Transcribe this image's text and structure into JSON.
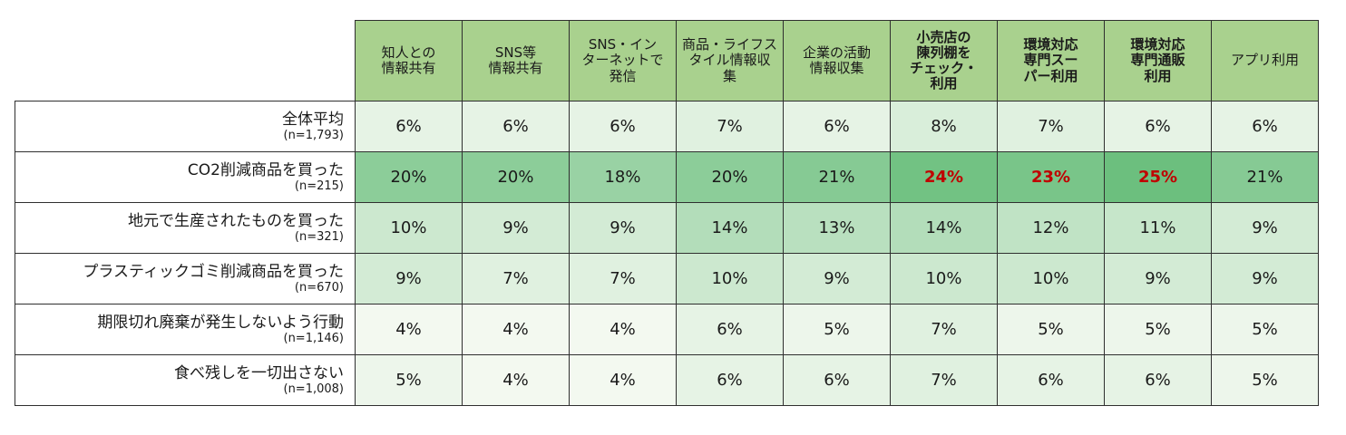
{
  "chart_data": {
    "type": "heatmap",
    "title": "",
    "colors": {
      "header_bg": "#a9d18e",
      "cell_low": "#f3f9f0",
      "cell_high": "#6cbf7e",
      "highlight_text": "#c00000",
      "border": "#2f2f2f"
    },
    "columns": [
      {
        "label": "知人との\n情報共有",
        "bold": false
      },
      {
        "label": "SNS等\n情報共有",
        "bold": false
      },
      {
        "label": "SNS・イン\nターネットで\n発信",
        "bold": false
      },
      {
        "label": "商品・ライフス\nタイル情報収\n集",
        "bold": false
      },
      {
        "label": "企業の活動\n情報収集",
        "bold": false
      },
      {
        "label": "小売店の\n陳列棚を\nチェック・\n利用",
        "bold": true
      },
      {
        "label": "環境対応\n専門スー\nパー利用",
        "bold": true
      },
      {
        "label": "環境対応\n専門通販\n利用",
        "bold": true
      },
      {
        "label": "アプリ利用",
        "bold": false
      }
    ],
    "rows": [
      {
        "label": "全体平均",
        "n": "(n=1,793)",
        "values": [
          6,
          6,
          6,
          7,
          6,
          8,
          7,
          6,
          6
        ],
        "display": [
          "6%",
          "6%",
          "6%",
          "7%",
          "6%",
          "8%",
          "7%",
          "6%",
          "6%"
        ],
        "highlight": [
          false,
          false,
          false,
          false,
          false,
          false,
          false,
          false,
          false
        ]
      },
      {
        "label": "CO2削減商品を買った",
        "n": "(n=215)",
        "values": [
          20,
          20,
          18,
          20,
          21,
          24,
          23,
          25,
          21
        ],
        "display": [
          "20%",
          "20%",
          "18%",
          "20%",
          "21%",
          "24%",
          "23%",
          "25%",
          "21%"
        ],
        "highlight": [
          false,
          false,
          false,
          false,
          false,
          true,
          true,
          true,
          false
        ]
      },
      {
        "label": "地元で生産されたものを買った",
        "n": "(n=321)",
        "values": [
          10,
          9,
          9,
          14,
          13,
          14,
          12,
          11,
          9
        ],
        "display": [
          "10%",
          "9%",
          "9%",
          "14%",
          "13%",
          "14%",
          "12%",
          "11%",
          "9%"
        ],
        "highlight": [
          false,
          false,
          false,
          false,
          false,
          false,
          false,
          false,
          false
        ]
      },
      {
        "label": "プラスティックゴミ削減商品を買った",
        "n": "(n=670)",
        "values": [
          9,
          7,
          7,
          10,
          9,
          10,
          10,
          9,
          9
        ],
        "display": [
          "9%",
          "7%",
          "7%",
          "10%",
          "9%",
          "10%",
          "10%",
          "9%",
          "9%"
        ],
        "highlight": [
          false,
          false,
          false,
          false,
          false,
          false,
          false,
          false,
          false
        ]
      },
      {
        "label": "期限切れ廃棄が発生しないよう行動",
        "n": "(n=1,146)",
        "values": [
          4,
          4,
          4,
          6,
          5,
          7,
          5,
          5,
          5
        ],
        "display": [
          "4%",
          "4%",
          "4%",
          "6%",
          "5%",
          "7%",
          "5%",
          "5%",
          "5%"
        ],
        "highlight": [
          false,
          false,
          false,
          false,
          false,
          false,
          false,
          false,
          false
        ]
      },
      {
        "label": "食べ残しを一切出さない",
        "n": "(n=1,008)",
        "values": [
          5,
          4,
          4,
          6,
          6,
          7,
          6,
          6,
          5
        ],
        "display": [
          "5%",
          "4%",
          "4%",
          "6%",
          "6%",
          "7%",
          "6%",
          "6%",
          "5%"
        ],
        "highlight": [
          false,
          false,
          false,
          false,
          false,
          false,
          false,
          false,
          false
        ]
      }
    ]
  }
}
